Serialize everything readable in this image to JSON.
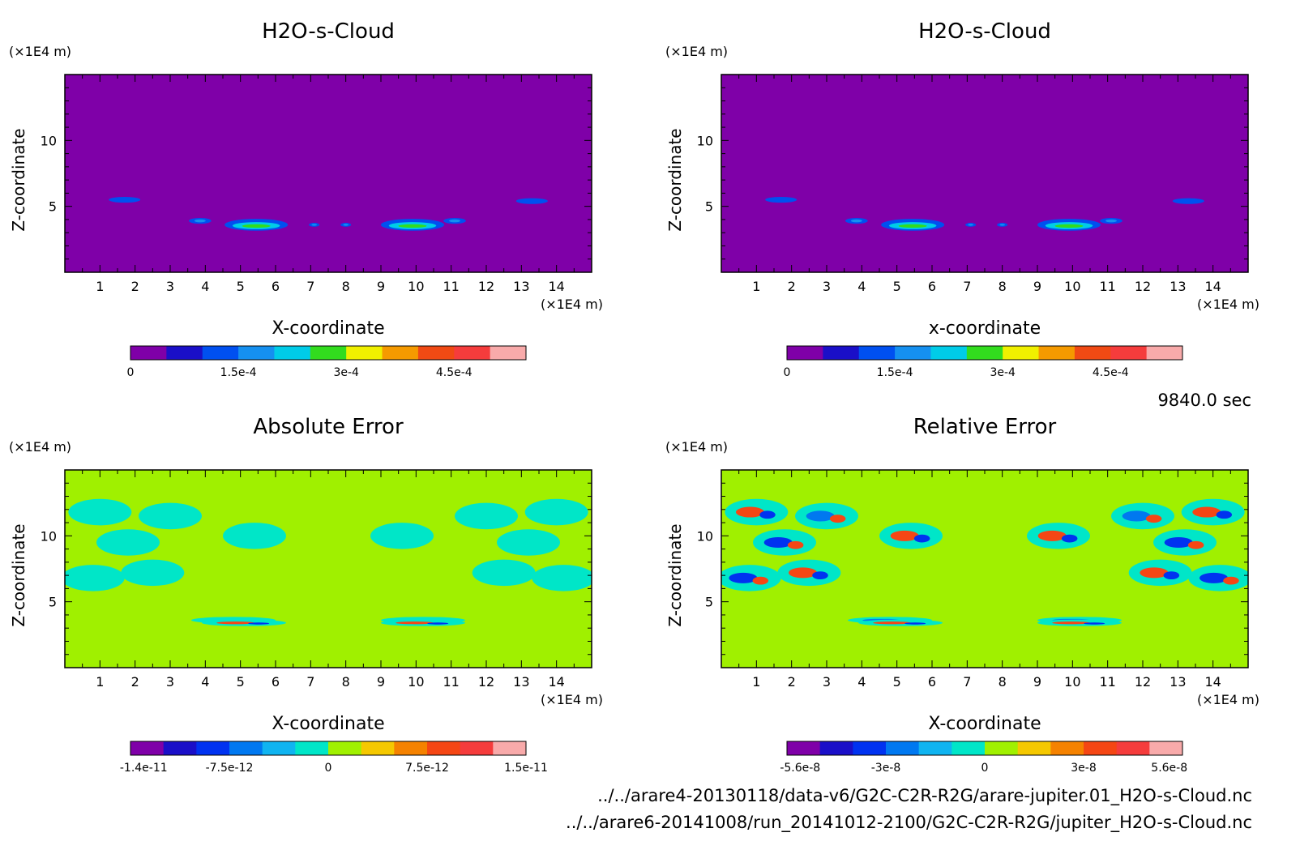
{
  "figure": {
    "time_label": "9840.0 sec",
    "file_paths": [
      "../../arare4-20130118/data-v6/G2C-C2R-R2G/arare-jupiter.01_H2O-s-Cloud.nc",
      "../../arare6-20141008/run_20141012-2100/G2C-C2R-R2G/jupiter_H2O-s-Cloud.nc"
    ]
  },
  "chart_data": [
    {
      "type": "heatmap",
      "title": "H2O-s-Cloud",
      "xlabel": "X-coordinate",
      "ylabel": "Z-coordinate",
      "x_unit": "(×1E4 m)",
      "y_unit": "(×1E4 m)",
      "xlim": [
        0,
        15
      ],
      "ylim": [
        0,
        15
      ],
      "x_ticks": [
        1,
        2,
        3,
        4,
        5,
        6,
        7,
        8,
        9,
        10,
        11,
        12,
        13,
        14
      ],
      "y_ticks": [
        5,
        10
      ],
      "colorbar": {
        "colors": [
          "#7f00a8",
          "#1a0fc8",
          "#0050f0",
          "#1590f0",
          "#00cce8",
          "#32dc1e",
          "#f0f000",
          "#f59a00",
          "#f04a14",
          "#f53c3c",
          "#f8aaaa"
        ],
        "tick_values": [
          0,
          0.00015,
          0.0003,
          0.00045
        ],
        "tick_labels": [
          "0",
          "1.5e-4",
          "3e-4",
          "4.5e-4"
        ],
        "range": [
          0,
          0.00055
        ]
      },
      "background_level": 0,
      "features": [
        {
          "x": 1.7,
          "z": 5.5,
          "level": 2
        },
        {
          "x": 3.85,
          "z": 3.9,
          "level": 3
        },
        {
          "x": 5.45,
          "z": 3.6,
          "level": 5
        },
        {
          "x": 7.1,
          "z": 3.6,
          "level": 3
        },
        {
          "x": 8.0,
          "z": 3.6,
          "level": 3
        },
        {
          "x": 9.9,
          "z": 3.6,
          "level": 5
        },
        {
          "x": 11.1,
          "z": 3.9,
          "level": 3
        },
        {
          "x": 13.3,
          "z": 5.4,
          "level": 2
        }
      ]
    },
    {
      "type": "heatmap",
      "title": "H2O-s-Cloud",
      "xlabel": "x-coordinate",
      "ylabel": "Z-coordinate",
      "x_unit": "(×1E4 m)",
      "y_unit": "(×1E4 m)",
      "xlim": [
        0,
        15
      ],
      "ylim": [
        0,
        15
      ],
      "x_ticks": [
        1,
        2,
        3,
        4,
        5,
        6,
        7,
        8,
        9,
        10,
        11,
        12,
        13,
        14
      ],
      "y_ticks": [
        5,
        10
      ],
      "colorbar": {
        "colors": [
          "#7f00a8",
          "#1a0fc8",
          "#0050f0",
          "#1590f0",
          "#00cce8",
          "#32dc1e",
          "#f0f000",
          "#f59a00",
          "#f04a14",
          "#f53c3c",
          "#f8aaaa"
        ],
        "tick_values": [
          0,
          0.00015,
          0.0003,
          0.00045
        ],
        "tick_labels": [
          "0",
          "1.5e-4",
          "3e-4",
          "4.5e-4"
        ],
        "range": [
          0,
          0.00055
        ]
      },
      "background_level": 0,
      "features": [
        {
          "x": 1.7,
          "z": 5.5,
          "level": 2
        },
        {
          "x": 3.85,
          "z": 3.9,
          "level": 3
        },
        {
          "x": 5.45,
          "z": 3.6,
          "level": 5
        },
        {
          "x": 7.1,
          "z": 3.6,
          "level": 3
        },
        {
          "x": 8.0,
          "z": 3.6,
          "level": 3
        },
        {
          "x": 9.9,
          "z": 3.6,
          "level": 5
        },
        {
          "x": 11.1,
          "z": 3.9,
          "level": 3
        },
        {
          "x": 13.3,
          "z": 5.4,
          "level": 2
        }
      ]
    },
    {
      "type": "heatmap",
      "title": "Absolute Error",
      "xlabel": "X-coordinate",
      "ylabel": "Z-coordinate",
      "x_unit": "(×1E4 m)",
      "y_unit": "(×1E4 m)",
      "xlim": [
        0,
        15
      ],
      "ylim": [
        0,
        15
      ],
      "x_ticks": [
        1,
        2,
        3,
        4,
        5,
        6,
        7,
        8,
        9,
        10,
        11,
        12,
        13,
        14
      ],
      "y_ticks": [
        5,
        10
      ],
      "colorbar": {
        "colors": [
          "#7f00a8",
          "#1a0fc8",
          "#0032f0",
          "#0078f0",
          "#10b4f0",
          "#00e6c8",
          "#a0f000",
          "#f5c800",
          "#f58200",
          "#f54614",
          "#f53c3c",
          "#f8aaaa"
        ],
        "tick_values": [
          -1.4e-11,
          -7.5e-12,
          0,
          7.5e-12,
          1.5e-11
        ],
        "tick_labels": [
          "-1.4e-11",
          "-7.5e-12",
          "0",
          "7.5e-12",
          "1.5e-11"
        ],
        "range": [
          -1.5e-11,
          1.5e-11
        ]
      },
      "background_level": 6,
      "features": [
        {
          "x": 1.8,
          "z": 9.5,
          "level": 5
        },
        {
          "x": 1.0,
          "z": 11.8,
          "level": 5
        },
        {
          "x": 3.0,
          "z": 11.5,
          "level": 5
        },
        {
          "x": 2.5,
          "z": 7.2,
          "level": 5
        },
        {
          "x": 0.8,
          "z": 6.8,
          "level": 5
        },
        {
          "x": 5.4,
          "z": 10.0,
          "level": 5
        },
        {
          "x": 13.2,
          "z": 9.5,
          "level": 5
        },
        {
          "x": 14.0,
          "z": 11.8,
          "level": 5
        },
        {
          "x": 12.0,
          "z": 11.5,
          "level": 5
        },
        {
          "x": 12.5,
          "z": 7.2,
          "level": 5
        },
        {
          "x": 14.2,
          "z": 6.8,
          "level": 5
        },
        {
          "x": 9.6,
          "z": 10.0,
          "level": 5
        },
        {
          "x": 4.8,
          "z": 3.6,
          "level": 5
        },
        {
          "x": 10.2,
          "z": 3.6,
          "level": 5
        },
        {
          "x": 5.1,
          "z": 3.4,
          "level": 9
        },
        {
          "x": 10.2,
          "z": 3.4,
          "level": 9
        }
      ]
    },
    {
      "type": "heatmap",
      "title": "Relative Error",
      "xlabel": "X-coordinate",
      "ylabel": "Z-coordinate",
      "x_unit": "(×1E4 m)",
      "y_unit": "(×1E4 m)",
      "xlim": [
        0,
        15
      ],
      "ylim": [
        0,
        15
      ],
      "x_ticks": [
        1,
        2,
        3,
        4,
        5,
        6,
        7,
        8,
        9,
        10,
        11,
        12,
        13,
        14
      ],
      "y_ticks": [
        5,
        10
      ],
      "colorbar": {
        "colors": [
          "#7f00a8",
          "#1a0fc8",
          "#0032f0",
          "#0078f0",
          "#10b4f0",
          "#00e6c8",
          "#a0f000",
          "#f5c800",
          "#f58200",
          "#f54614",
          "#f53c3c",
          "#f8aaaa"
        ],
        "tick_values": [
          -5.6e-08,
          -3e-08,
          0,
          3e-08,
          5.6e-08
        ],
        "tick_labels": [
          "-5.6e-8",
          "-3e-8",
          "0",
          "3e-8",
          "5.6e-8"
        ],
        "range": [
          -6e-08,
          6e-08
        ]
      },
      "background_level": 6,
      "features": [
        {
          "x": 1.8,
          "z": 9.5,
          "level": 2
        },
        {
          "x": 1.0,
          "z": 11.8,
          "level": 9
        },
        {
          "x": 3.0,
          "z": 11.5,
          "level": 3
        },
        {
          "x": 2.5,
          "z": 7.2,
          "level": 9
        },
        {
          "x": 0.8,
          "z": 6.8,
          "level": 2
        },
        {
          "x": 5.4,
          "z": 10.0,
          "level": 9
        },
        {
          "x": 13.2,
          "z": 9.5,
          "level": 2
        },
        {
          "x": 14.0,
          "z": 11.8,
          "level": 9
        },
        {
          "x": 12.0,
          "z": 11.5,
          "level": 3
        },
        {
          "x": 12.5,
          "z": 7.2,
          "level": 9
        },
        {
          "x": 14.2,
          "z": 6.8,
          "level": 2
        },
        {
          "x": 9.6,
          "z": 10.0,
          "level": 9
        },
        {
          "x": 4.8,
          "z": 3.6,
          "level": 3
        },
        {
          "x": 10.2,
          "z": 3.6,
          "level": 3
        },
        {
          "x": 5.1,
          "z": 3.4,
          "level": 9
        },
        {
          "x": 10.2,
          "z": 3.4,
          "level": 9
        }
      ]
    }
  ]
}
